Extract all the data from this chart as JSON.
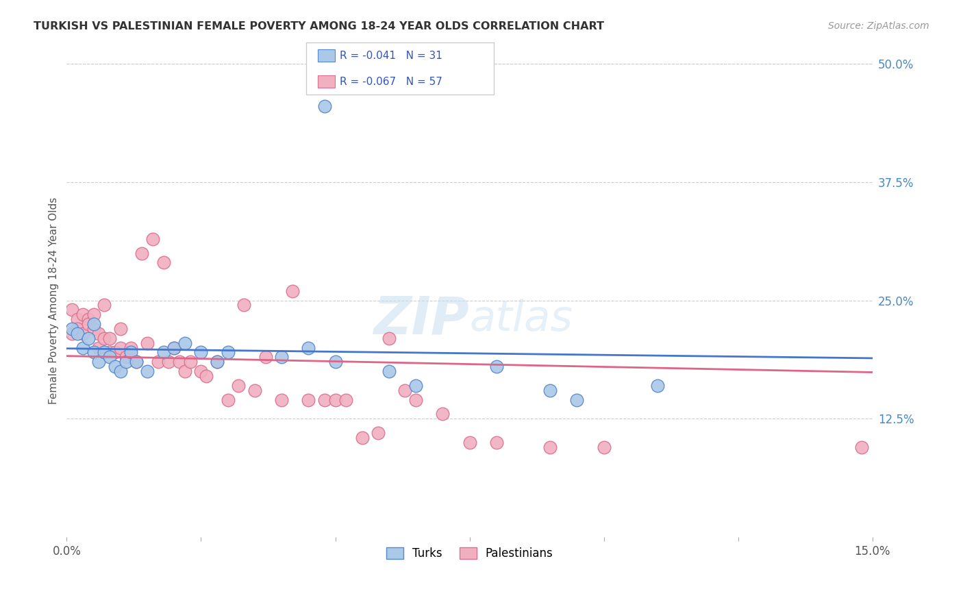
{
  "title": "TURKISH VS PALESTINIAN FEMALE POVERTY AMONG 18-24 YEAR OLDS CORRELATION CHART",
  "source": "Source: ZipAtlas.com",
  "ylabel": "Female Poverty Among 18-24 Year Olds",
  "xlim": [
    0.0,
    0.15
  ],
  "ylim": [
    0.0,
    0.5
  ],
  "xticks": [
    0.0,
    0.025,
    0.05,
    0.075,
    0.1,
    0.125,
    0.15
  ],
  "xticklabels": [
    "0.0%",
    "",
    "",
    "",
    "",
    "",
    "15.0%"
  ],
  "ytick_positions": [
    0.0,
    0.125,
    0.25,
    0.375,
    0.5
  ],
  "ytick_labels": [
    "",
    "12.5%",
    "25.0%",
    "37.5%",
    "50.0%"
  ],
  "turks_color": "#aac8e8",
  "turks_edge_color": "#5588cc",
  "palestinians_color": "#f0b0c0",
  "palestinians_edge_color": "#dd7090",
  "turks_label": "Turks",
  "palestinians_label": "Palestinians",
  "r_turks": -0.041,
  "n_turks": 31,
  "r_palestinians": -0.067,
  "n_palestinians": 57,
  "legend_text_color": "#3355bb",
  "regression_color_turks": "#4477cc",
  "regression_color_palestinians": "#dd6688",
  "turks_x": [
    0.001,
    0.002,
    0.003,
    0.004,
    0.005,
    0.005,
    0.006,
    0.007,
    0.008,
    0.009,
    0.01,
    0.011,
    0.012,
    0.013,
    0.015,
    0.018,
    0.02,
    0.022,
    0.025,
    0.028,
    0.03,
    0.04,
    0.045,
    0.05,
    0.06,
    0.065,
    0.08,
    0.09,
    0.095,
    0.11,
    0.048
  ],
  "turks_y": [
    0.22,
    0.215,
    0.2,
    0.21,
    0.195,
    0.225,
    0.185,
    0.195,
    0.19,
    0.18,
    0.175,
    0.185,
    0.195,
    0.185,
    0.175,
    0.195,
    0.2,
    0.205,
    0.195,
    0.185,
    0.195,
    0.19,
    0.2,
    0.185,
    0.175,
    0.16,
    0.18,
    0.155,
    0.145,
    0.16,
    0.455
  ],
  "palestinians_x": [
    0.001,
    0.001,
    0.002,
    0.002,
    0.003,
    0.003,
    0.004,
    0.004,
    0.005,
    0.005,
    0.006,
    0.006,
    0.007,
    0.007,
    0.008,
    0.008,
    0.009,
    0.01,
    0.01,
    0.011,
    0.012,
    0.013,
    0.014,
    0.015,
    0.016,
    0.017,
    0.018,
    0.019,
    0.02,
    0.021,
    0.022,
    0.023,
    0.025,
    0.026,
    0.028,
    0.03,
    0.032,
    0.033,
    0.035,
    0.037,
    0.04,
    0.042,
    0.045,
    0.048,
    0.05,
    0.052,
    0.055,
    0.058,
    0.06,
    0.063,
    0.065,
    0.07,
    0.075,
    0.08,
    0.09,
    0.1,
    0.148
  ],
  "palestinians_y": [
    0.24,
    0.215,
    0.23,
    0.22,
    0.235,
    0.215,
    0.23,
    0.225,
    0.235,
    0.22,
    0.215,
    0.2,
    0.245,
    0.21,
    0.21,
    0.195,
    0.195,
    0.22,
    0.2,
    0.19,
    0.2,
    0.185,
    0.3,
    0.205,
    0.315,
    0.185,
    0.29,
    0.185,
    0.2,
    0.185,
    0.175,
    0.185,
    0.175,
    0.17,
    0.185,
    0.145,
    0.16,
    0.245,
    0.155,
    0.19,
    0.145,
    0.26,
    0.145,
    0.145,
    0.145,
    0.145,
    0.105,
    0.11,
    0.21,
    0.155,
    0.145,
    0.13,
    0.1,
    0.1,
    0.095,
    0.095,
    0.095
  ]
}
